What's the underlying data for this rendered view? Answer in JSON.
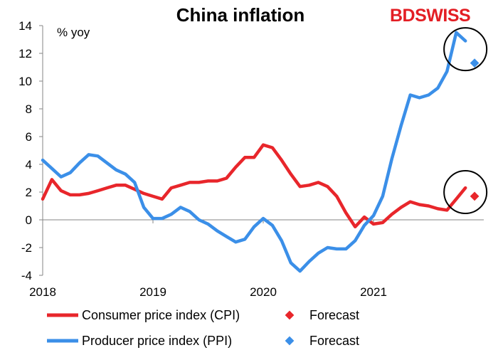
{
  "brand": {
    "logo_text_bd": "BD",
    "logo_text_swiss": "SWISS",
    "color": "#e31e24"
  },
  "chart_data": {
    "type": "line",
    "title": "China inflation",
    "ylabel": "% yoy",
    "xlabel": "",
    "ylim": [
      -4,
      14
    ],
    "yticks": [
      -4,
      -2,
      0,
      2,
      4,
      6,
      8,
      10,
      12,
      14
    ],
    "x_start": "2018-01",
    "x_ticks": [
      {
        "label": "2018",
        "index": 0
      },
      {
        "label": "2019",
        "index": 12
      },
      {
        "label": "2020",
        "index": 24
      },
      {
        "label": "2021",
        "index": 36
      }
    ],
    "x_range_index": [
      0,
      48
    ],
    "grid": false,
    "legend_position": "bottom",
    "series": [
      {
        "name": "Consumer price index (CPI)",
        "color": "#e8262b",
        "start_index": 0,
        "values": [
          1.5,
          2.9,
          2.1,
          1.8,
          1.8,
          1.9,
          2.1,
          2.3,
          2.5,
          2.5,
          2.2,
          1.9,
          1.7,
          1.5,
          2.3,
          2.5,
          2.7,
          2.7,
          2.8,
          2.8,
          3.0,
          3.8,
          4.5,
          4.5,
          5.4,
          5.2,
          4.3,
          3.3,
          2.4,
          2.5,
          2.7,
          2.4,
          1.7,
          0.5,
          -0.5,
          0.2,
          -0.3,
          -0.2,
          0.4,
          0.9,
          1.3,
          1.1,
          1.0,
          0.8,
          0.7,
          1.5,
          2.3
        ]
      },
      {
        "name": "Producer price index (PPI)",
        "color": "#3b8fe8",
        "start_index": 0,
        "values": [
          4.3,
          3.7,
          3.1,
          3.4,
          4.1,
          4.7,
          4.6,
          4.1,
          3.6,
          3.3,
          2.7,
          0.9,
          0.1,
          0.1,
          0.4,
          0.9,
          0.6,
          0.0,
          -0.3,
          -0.8,
          -1.2,
          -1.6,
          -1.4,
          -0.5,
          0.1,
          -0.4,
          -1.5,
          -3.1,
          -3.7,
          -3.0,
          -2.4,
          -2.0,
          -2.1,
          -2.1,
          -1.5,
          -0.4,
          0.3,
          1.7,
          4.4,
          6.8,
          9.0,
          8.8,
          9.0,
          9.5,
          10.7,
          13.5,
          12.9
        ]
      }
    ],
    "forecasts": [
      {
        "name": "Forecast",
        "series": "Consumer price index (CPI)",
        "color": "#e8262b",
        "index": 47,
        "value": 1.7
      },
      {
        "name": "Forecast",
        "series": "Producer price index (PPI)",
        "color": "#3b8fe8",
        "index": 47,
        "value": 11.3
      }
    ],
    "annotations": [
      {
        "type": "circle",
        "around": "PPI latest and forecast",
        "index": 46,
        "value": 12.3
      },
      {
        "type": "circle",
        "around": "CPI latest and forecast",
        "index": 46,
        "value": 2.0
      }
    ]
  }
}
